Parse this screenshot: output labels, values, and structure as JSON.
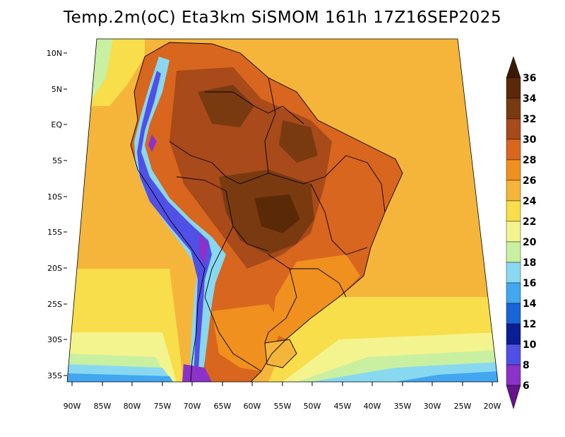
{
  "title": "Temp.2m(oC) Eta3km SiSMOM 161h 17Z16SEP2025",
  "map": {
    "lat_labels": [
      "10N",
      "5N",
      "EQ",
      "5S",
      "10S",
      "15S",
      "20S",
      "25S",
      "30S",
      "35S"
    ],
    "lon_labels": [
      "90W",
      "85W",
      "80W",
      "75W",
      "70W",
      "65W",
      "60W",
      "55W",
      "50W",
      "45W",
      "40W",
      "35W",
      "30W",
      "25W",
      "20W"
    ]
  },
  "colorbar": {
    "labels": [
      "36",
      "34",
      "32",
      "30",
      "28",
      "26",
      "24",
      "22",
      "20",
      "18",
      "16",
      "14",
      "12",
      "10",
      "8",
      "6"
    ],
    "colors": [
      "#5a2a08",
      "#7a3a10",
      "#a84a1a",
      "#d8661e",
      "#f0901e",
      "#f5b53a",
      "#f7de4a",
      "#f4f48e",
      "#c8f0a0",
      "#88d8f0",
      "#42a6f0",
      "#1864d8",
      "#0a1e96",
      "#5050e6",
      "#8c32c8",
      "#64148c"
    ]
  }
}
